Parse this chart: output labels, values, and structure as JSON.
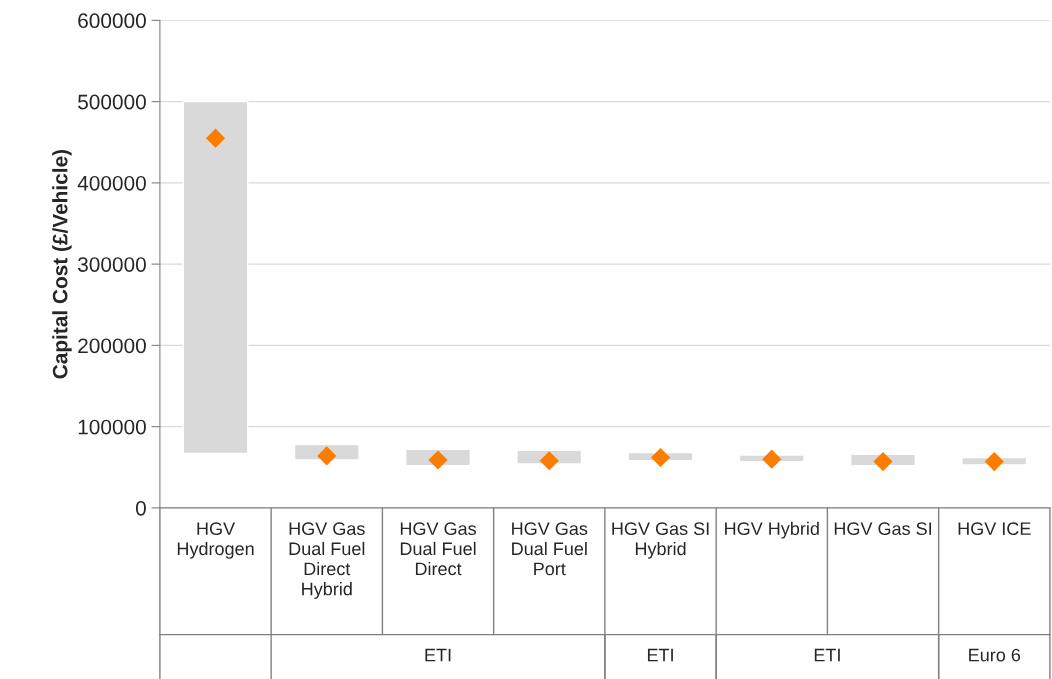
{
  "chart_data": {
    "type": "bar",
    "ylabel": "Capital Cost (£/Vehicle)",
    "categories": [
      "HGV Hydrogen",
      "HGV Gas Dual Fuel Direct Hybrid",
      "HGV Gas Dual Fuel Direct",
      "HGV Gas Dual Fuel Port",
      "HGV Gas SI Hybrid",
      "HGV Hybrid",
      "HGV Gas SI",
      "HGV ICE"
    ],
    "series": [
      {
        "color": "#d9d9d9",
        "base": [
          67000,
          59000,
          52000,
          54000,
          58000,
          57000,
          52000,
          53000
        ],
        "values": [
          433000,
          19000,
          20000,
          17000,
          10000,
          8000,
          14000,
          9000
        ]
      },
      {
        "type": "scatter",
        "color": "#fa7d00",
        "marker": "diamond",
        "x": [
          "HGV Hydrogen",
          "HGV Gas Dual Fuel Direct Hybrid",
          "HGV Gas Dual Fuel Direct",
          "HGV Gas Dual Fuel Port",
          "HGV Gas SI Hybrid",
          "HGV Hybrid",
          "HGV Gas SI",
          "HGV ICE"
        ],
        "values": [
          455000,
          64000,
          59000,
          58000,
          62000,
          60000,
          57000,
          57000
        ]
      }
    ],
    "annotations": [
      "ETI",
      "ETI",
      "ETI",
      "Euro 6"
    ],
    "ylim": [
      0,
      600000
    ],
    "yticks": [
      0,
      100000,
      200000,
      300000,
      400000,
      500000,
      600000
    ],
    "grid": "y",
    "legend": false
  }
}
